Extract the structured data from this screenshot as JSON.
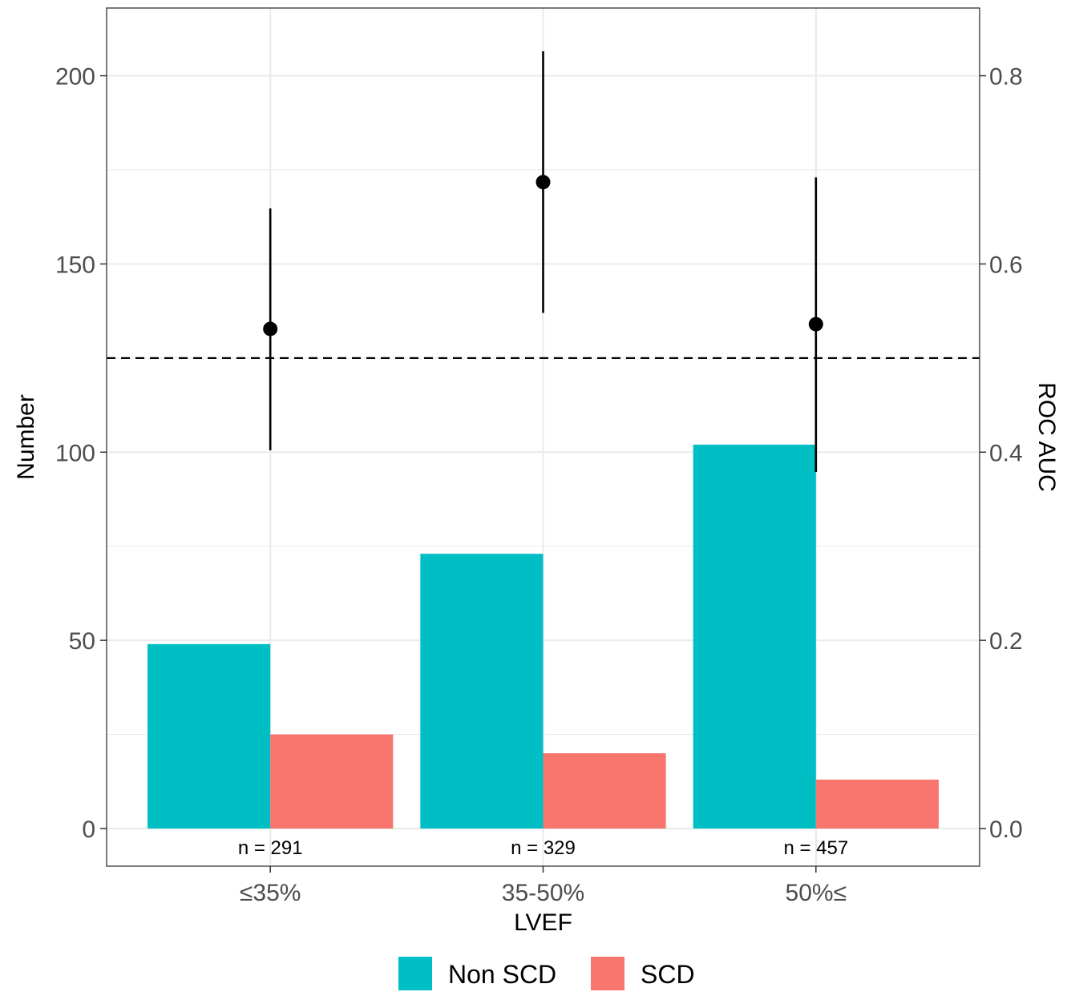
{
  "chart_data": {
    "type": "bar",
    "xlabel": "LVEF",
    "ylabel": "Number",
    "ylabel_right": "ROC AUC",
    "categories": [
      "≤35%",
      "35-50%",
      "50%≤"
    ],
    "ylim": [
      -10,
      218
    ],
    "yticks": [
      0,
      50,
      100,
      150,
      200
    ],
    "ylim_right": [
      -0.04,
      0.872
    ],
    "yticks_right": [
      "0.0",
      "0.2",
      "0.4",
      "0.6",
      "0.8"
    ],
    "grid": true,
    "series": [
      {
        "name": "Non SCD",
        "color": "#00BFC4",
        "values": [
          49,
          73,
          102
        ]
      },
      {
        "name": "SCD",
        "color": "#F8766D",
        "values": [
          25,
          20,
          13
        ]
      }
    ],
    "auc": {
      "estimates": [
        0.531,
        0.687,
        0.536
      ],
      "lower": [
        0.402,
        0.548,
        0.379
      ],
      "upper": [
        0.659,
        0.826,
        0.692
      ],
      "reference_line": 0.5
    },
    "annotations": [
      "n = 291",
      "n = 329",
      "n = 457"
    ],
    "legend_position": "bottom"
  }
}
